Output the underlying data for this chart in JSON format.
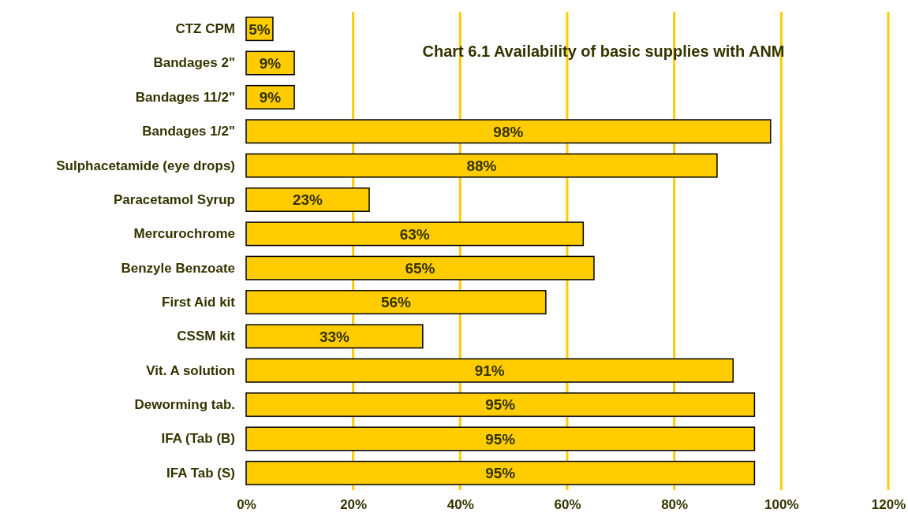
{
  "chart_data": {
    "type": "bar",
    "orientation": "horizontal",
    "title": "Chart 6.1 Availability of basic supplies with ANM",
    "categories": [
      "CTZ CPM",
      "Bandages 2\"",
      "Bandages 11/2\"",
      "Bandages 1/2\"",
      "Sulphacetamide (eye drops)",
      "Paracetamol Syrup",
      "Mercurochrome",
      "Benzyle Benzoate",
      "First Aid kit",
      "CSSM kit",
      "Vit. A solution",
      "Deworming tab.",
      "IFA (Tab (B)",
      "IFA Tab (S)"
    ],
    "values": [
      5,
      9,
      9,
      98,
      88,
      23,
      63,
      65,
      56,
      33,
      91,
      95,
      95,
      95
    ],
    "value_labels": [
      "5%",
      "9%",
      "9%",
      "98%",
      "88%",
      "23%",
      "63%",
      "65%",
      "56%",
      "33%",
      "91%",
      "95%",
      "95%",
      "95%"
    ],
    "color": "#ffcc00",
    "xlim": [
      0,
      120
    ],
    "xticks": [
      {
        "value": 0,
        "label": "0%"
      },
      {
        "value": 20,
        "label": "20%"
      },
      {
        "value": 40,
        "label": "40%"
      },
      {
        "value": 60,
        "label": "60%"
      },
      {
        "value": 80,
        "label": "80%"
      },
      {
        "value": 100,
        "label": "100%"
      },
      {
        "value": 120,
        "label": "120%"
      }
    ],
    "grid": "x"
  }
}
